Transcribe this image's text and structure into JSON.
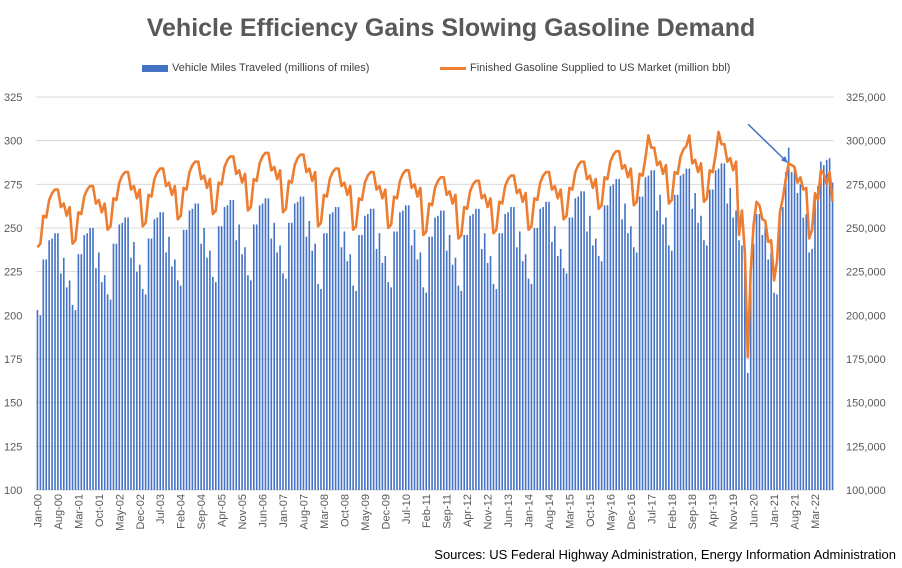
{
  "source": "Sources: US Federal Highway Administration, Energy Information Administration",
  "chart_data": {
    "type": "bar",
    "title": "Vehicle Efficiency Gains Slowing Gasoline Demand",
    "legend_position": "top",
    "grid": true,
    "colors": {
      "bars": "#4472C4",
      "line": "#ED7D31",
      "arrow": "#4472C4",
      "grid": "#D9D9D9"
    },
    "left_axis": {
      "min": 100,
      "max": 325,
      "ticks": [
        "100",
        "125",
        "150",
        "175",
        "200",
        "225",
        "250",
        "275",
        "300",
        "325"
      ]
    },
    "right_axis": {
      "min": 100000,
      "max": 325000,
      "ticks": [
        "100,000",
        "125,000",
        "150,000",
        "175,000",
        "200,000",
        "225,000",
        "250,000",
        "275,000",
        "300,000",
        "325,000"
      ]
    },
    "x_tick_labels": [
      "Jan-00",
      "Aug-00",
      "Mar-01",
      "Oct-01",
      "May-02",
      "Dec-02",
      "Jul-03",
      "Feb-04",
      "Sep-04",
      "Apr-05",
      "Nov-05",
      "Jun-06",
      "Jan-07",
      "Aug-07",
      "Mar-08",
      "Oct-08",
      "May-09",
      "Dec-09",
      "Jul-10",
      "Feb-11",
      "Sep-11",
      "Apr-12",
      "Nov-12",
      "Jun-13",
      "Jan-14",
      "Aug-14",
      "Mar-15",
      "Oct-15",
      "May-16",
      "Dec-16",
      "Jul-17",
      "Feb-18",
      "Sep-18",
      "Apr-19",
      "Nov-19",
      "Jun-20",
      "Jan-21",
      "Aug-21",
      "Mar-22"
    ],
    "series": [
      {
        "name": "Vehicle Miles Traveled (millions of miles)",
        "type": "bar",
        "axis": "left",
        "start": "Jan-00",
        "frequency": "monthly",
        "annual_profile": [
          203,
          200,
          232,
          232,
          243,
          244,
          247,
          247,
          224,
          233,
          216,
          220
        ],
        "yearly_level": [
          [
            "2000",
            0
          ],
          [
            "2001",
            3
          ],
          [
            "2002",
            9
          ],
          [
            "2003",
            12
          ],
          [
            "2004",
            17
          ],
          [
            "2005",
            19
          ],
          [
            "2006",
            20
          ],
          [
            "2007",
            21
          ],
          [
            "2008",
            15
          ],
          [
            "2009",
            14
          ],
          [
            "2010",
            16
          ],
          [
            "2011",
            13
          ],
          [
            "2012",
            14
          ],
          [
            "2013",
            15
          ],
          [
            "2014",
            18
          ],
          [
            "2015",
            24
          ],
          [
            "2016",
            31
          ],
          [
            "2017",
            36
          ],
          [
            "2018",
            37
          ],
          [
            "2019",
            40
          ]
        ],
        "overrides": [
          [
            "Mar-20",
            226
          ],
          [
            "Apr-20",
            167
          ],
          [
            "May-20",
            218
          ],
          [
            "Jun-20",
            241
          ],
          [
            "Jul-20",
            258
          ],
          [
            "Aug-20",
            258
          ],
          [
            "Sep-20",
            246
          ],
          [
            "Oct-20",
            251
          ],
          [
            "Nov-20",
            232
          ],
          [
            "Dec-20",
            236
          ],
          [
            "Jan-21",
            213
          ],
          [
            "Feb-21",
            212
          ],
          [
            "Mar-21",
            260
          ],
          [
            "Apr-21",
            262
          ],
          [
            "May-21",
            282
          ],
          [
            "Jun-21",
            296
          ],
          [
            "Jul-21",
            282
          ],
          [
            "Aug-21",
            285
          ],
          [
            "Sep-21",
            270
          ],
          [
            "Oct-21",
            275
          ],
          [
            "Nov-21",
            256
          ],
          [
            "Dec-21",
            258
          ],
          [
            "Jan-22",
            236
          ],
          [
            "Feb-22",
            238
          ],
          [
            "Mar-22",
            270
          ],
          [
            "Apr-22",
            274
          ],
          [
            "May-22",
            288
          ],
          [
            "Jun-22",
            286
          ],
          [
            "Jul-22",
            289
          ],
          [
            "Aug-22",
            290
          ],
          [
            "Sep-22",
            276
          ]
        ]
      },
      {
        "name": "Finished Gasoline Supplied to US Market (million bbl)",
        "type": "line",
        "axis": "right",
        "start": "Jan-00",
        "frequency": "monthly",
        "annual_profile": [
          239000,
          241000,
          257000,
          256000,
          266000,
          270000,
          272000,
          272000,
          262000,
          264000,
          257000,
          262000
        ],
        "yearly_level": [
          [
            "2000",
            0
          ],
          [
            "2001",
            2000
          ],
          [
            "2002",
            10000
          ],
          [
            "2003",
            12000
          ],
          [
            "2004",
            16000
          ],
          [
            "2005",
            19000
          ],
          [
            "2006",
            21000
          ],
          [
            "2007",
            20000
          ],
          [
            "2008",
            12000
          ],
          [
            "2009",
            10000
          ],
          [
            "2010",
            11000
          ],
          [
            "2011",
            7000
          ],
          [
            "2012",
            5000
          ],
          [
            "2013",
            8000
          ],
          [
            "2014",
            10000
          ],
          [
            "2015",
            16000
          ],
          [
            "2016",
            22000
          ],
          [
            "2017",
            24000
          ],
          [
            "2018",
            25000
          ],
          [
            "2019",
            26000
          ]
        ],
        "overrides": [
          [
            "Jun-17",
            303000
          ],
          [
            "Aug-18",
            303000
          ],
          [
            "Jun-19",
            305000
          ],
          [
            "Jan-20",
            246000
          ],
          [
            "Feb-20",
            260000
          ],
          [
            "Mar-20",
            236000
          ],
          [
            "Apr-20",
            176000
          ],
          [
            "May-20",
            225000
          ],
          [
            "Jun-20",
            252000
          ],
          [
            "Jul-20",
            265000
          ],
          [
            "Aug-20",
            263000
          ],
          [
            "Sep-20",
            255000
          ],
          [
            "Oct-20",
            254000
          ],
          [
            "Nov-20",
            242000
          ],
          [
            "Dec-20",
            243000
          ],
          [
            "Jan-21",
            220000
          ],
          [
            "Feb-21",
            231000
          ],
          [
            "Mar-21",
            259000
          ],
          [
            "Apr-21",
            267000
          ],
          [
            "May-21",
            278000
          ],
          [
            "Jun-21",
            287000
          ],
          [
            "Jul-21",
            286000
          ],
          [
            "Aug-21",
            285000
          ],
          [
            "Sep-21",
            276000
          ],
          [
            "Oct-21",
            279000
          ],
          [
            "Nov-21",
            272000
          ],
          [
            "Dec-21",
            273000
          ],
          [
            "Jan-22",
            244000
          ],
          [
            "Feb-22",
            249000
          ],
          [
            "Mar-22",
            270000
          ],
          [
            "Apr-22",
            266000
          ],
          [
            "May-22",
            283000
          ],
          [
            "Jun-22",
            281000
          ],
          [
            "Jul-22",
            275000
          ],
          [
            "Aug-22",
            282000
          ],
          [
            "Sep-22",
            265000
          ]
        ]
      }
    ],
    "annotations": [
      {
        "type": "arrow",
        "from": [
          "Jan-21",
          298
        ],
        "to": [
          "Jul-21",
          292
        ],
        "axis": "left"
      }
    ]
  }
}
